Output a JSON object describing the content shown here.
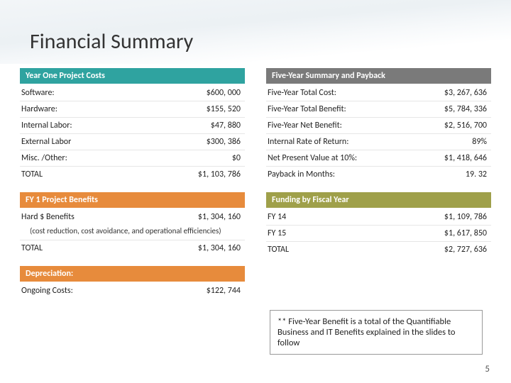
{
  "title": "Financial Summary",
  "left": {
    "year_one_costs": {
      "header": "Year One Project Costs",
      "rows": [
        {
          "label": "Software:",
          "value": "$600, 000"
        },
        {
          "label": "Hardware:",
          "value": "$155, 520"
        },
        {
          "label": "Internal Labor:",
          "value": "$47, 880"
        },
        {
          "label": "External Labor",
          "value": "$300, 386"
        },
        {
          "label": "Misc. /Other:",
          "value": "$0"
        },
        {
          "label": "TOTAL",
          "value": "$1, 103, 786"
        }
      ]
    },
    "fy1_benefits": {
      "header": "FY 1 Project Benefits",
      "hard_label": "Hard $ Benefits",
      "hard_value": "$1, 304, 160",
      "subnote": "(cost reduction, cost avoidance, and operational efficiencies)",
      "total_label": "TOTAL",
      "total_value": "$1, 304, 160"
    },
    "depreciation": {
      "header": "Depreciation:",
      "row_label": "Ongoing Costs:",
      "row_value": "$122, 744"
    }
  },
  "right": {
    "five_year": {
      "header": "Five-Year Summary and Payback",
      "rows": [
        {
          "label": "Five-Year Total Cost:",
          "value": "$3, 267, 636"
        },
        {
          "label": "Five-Year Total Benefit:",
          "value": "$5, 784, 336"
        },
        {
          "label": "Five-Year Net Benefit:",
          "value": "$2, 516, 700"
        },
        {
          "label": "Internal Rate of Return:",
          "value": "89%"
        },
        {
          "label": "Net Present Value at 10%:",
          "value": "$1, 418, 646"
        },
        {
          "label": "Payback in Months:",
          "value": "19. 32"
        }
      ]
    },
    "funding": {
      "header": "Funding by Fiscal Year",
      "rows": [
        {
          "label": "FY 14",
          "value": "$1, 109, 786"
        },
        {
          "label": "FY 15",
          "value": "$1, 617, 850"
        },
        {
          "label": "TOTAL",
          "value": "$2, 727, 636"
        }
      ]
    }
  },
  "footnote": "** Five-Year Benefit is a total of the Quantifiable Business and IT Benefits explained in the slides to follow",
  "page_number": "5",
  "colors": {
    "teal": "#2fa3a0",
    "grey": "#7a7a7a",
    "orange": "#e78b3c",
    "olive": "#9fa04a"
  }
}
